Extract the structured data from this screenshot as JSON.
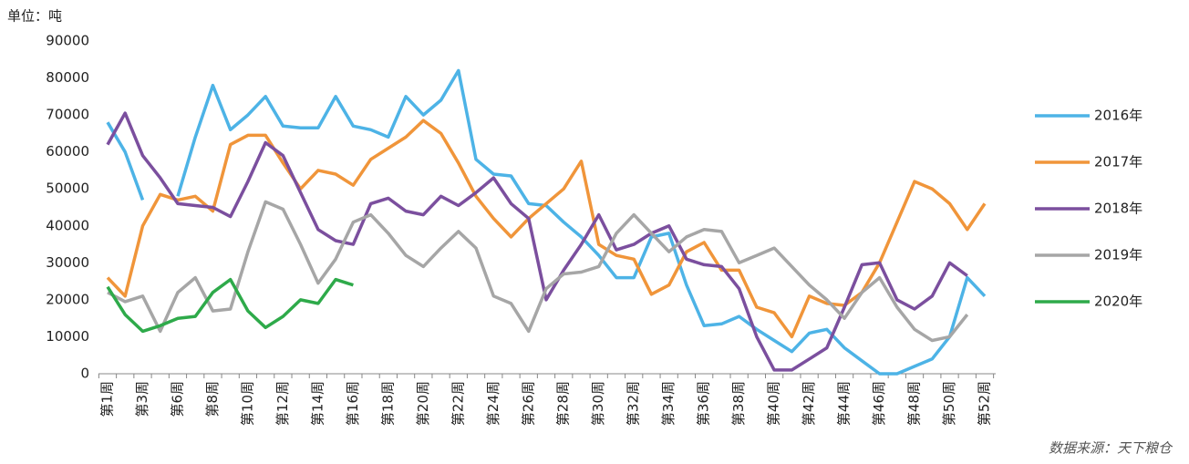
{
  "chart_data": {
    "type": "line",
    "unit_label": "单位：吨",
    "source": "数据来源：天下粮仓",
    "categories": [
      "第1周",
      null,
      "第3周",
      null,
      "第6周",
      null,
      "第8周",
      null,
      "第10周",
      null,
      "第12周",
      null,
      "第14周",
      null,
      "第16周",
      null,
      "第18周",
      null,
      "第20周",
      null,
      "第22周",
      null,
      "第24周",
      null,
      "第26周",
      null,
      "第28周",
      null,
      "第30周",
      null,
      "第32周",
      null,
      "第34周",
      null,
      "第36周",
      null,
      "第38周",
      null,
      "第40周",
      null,
      "第42周",
      null,
      "第44周",
      null,
      "第46周",
      null,
      "第48周",
      null,
      "第50周",
      null,
      "第52周"
    ],
    "series": [
      {
        "name": "2016年",
        "color": "#4db3e6",
        "values": [
          68000,
          60000,
          47000,
          null,
          48000,
          64000,
          78000,
          66000,
          70000,
          75000,
          67000,
          66500,
          66500,
          75000,
          67000,
          66000,
          64000,
          75000,
          70000,
          74000,
          82000,
          58000,
          54000,
          53500,
          46000,
          45500,
          41000,
          37000,
          32000,
          26000,
          26000,
          37000,
          38000,
          24000,
          13000,
          13500,
          15500,
          12000,
          9000,
          6000,
          11000,
          12000,
          7000,
          3500,
          0,
          0,
          2000,
          4000,
          10000,
          26000,
          21000
        ]
      },
      {
        "name": "2017年",
        "color": "#f0953a",
        "values": [
          26000,
          21000,
          40000,
          48500,
          47000,
          48000,
          44000,
          62000,
          64500,
          64500,
          57000,
          50000,
          55000,
          54000,
          51000,
          58000,
          61000,
          64000,
          68500,
          65000,
          57000,
          48000,
          42000,
          37000,
          42000,
          46000,
          50000,
          57500,
          35000,
          32000,
          31000,
          21500,
          24000,
          33000,
          35500,
          28000,
          28000,
          18000,
          16500,
          10000,
          21000,
          19000,
          18500,
          22000,
          30000,
          41000,
          52000,
          50000,
          46000,
          39000,
          46000
        ]
      },
      {
        "name": "2018年",
        "color": "#7b4f9e",
        "values": [
          62000,
          70500,
          59000,
          53000,
          46000,
          45500,
          45000,
          42500,
          52000,
          62500,
          59000,
          49000,
          39000,
          36000,
          35000,
          46000,
          47500,
          44000,
          43000,
          48000,
          45500,
          49000,
          53000,
          46000,
          42000,
          20000,
          28000,
          35000,
          43000,
          33500,
          35000,
          38000,
          40000,
          31000,
          29500,
          29000,
          23000,
          10000,
          1000,
          1000,
          4000,
          7000,
          18000,
          29500,
          30000,
          20000,
          17500,
          21000,
          30000,
          26500,
          null
        ]
      },
      {
        "name": "2019年",
        "color": "#a6a6a6",
        "values": [
          22000,
          19500,
          21000,
          11500,
          22000,
          26000,
          17000,
          17500,
          33000,
          46500,
          44500,
          35000,
          24500,
          31000,
          41000,
          43000,
          38000,
          32000,
          29000,
          34000,
          38500,
          34000,
          21000,
          19000,
          11500,
          23000,
          27000,
          27500,
          29000,
          38000,
          43000,
          38000,
          33000,
          37000,
          39000,
          38500,
          30000,
          32000,
          34000,
          29000,
          24000,
          20000,
          15000,
          22000,
          26000,
          18000,
          12000,
          9000,
          10000,
          16000,
          null
        ]
      },
      {
        "name": "2020年",
        "color": "#2eaa4a",
        "values": [
          23500,
          16000,
          11500,
          13000,
          15000,
          15500,
          22000,
          25500,
          17000,
          12500,
          15500,
          20000,
          19000,
          25500,
          24000,
          null,
          null,
          null,
          null,
          null,
          null,
          null,
          null,
          null,
          null,
          null,
          null,
          null,
          null,
          null,
          null,
          null,
          null,
          null,
          null,
          null,
          null,
          null,
          null,
          null,
          null,
          null,
          null,
          null,
          null,
          null,
          null,
          null,
          null,
          null,
          null
        ]
      }
    ],
    "ylim": [
      0,
      90000
    ],
    "yticks": [
      0,
      10000,
      20000,
      30000,
      40000,
      50000,
      60000,
      70000,
      80000,
      90000
    ],
    "grid": false,
    "legend": "right"
  }
}
